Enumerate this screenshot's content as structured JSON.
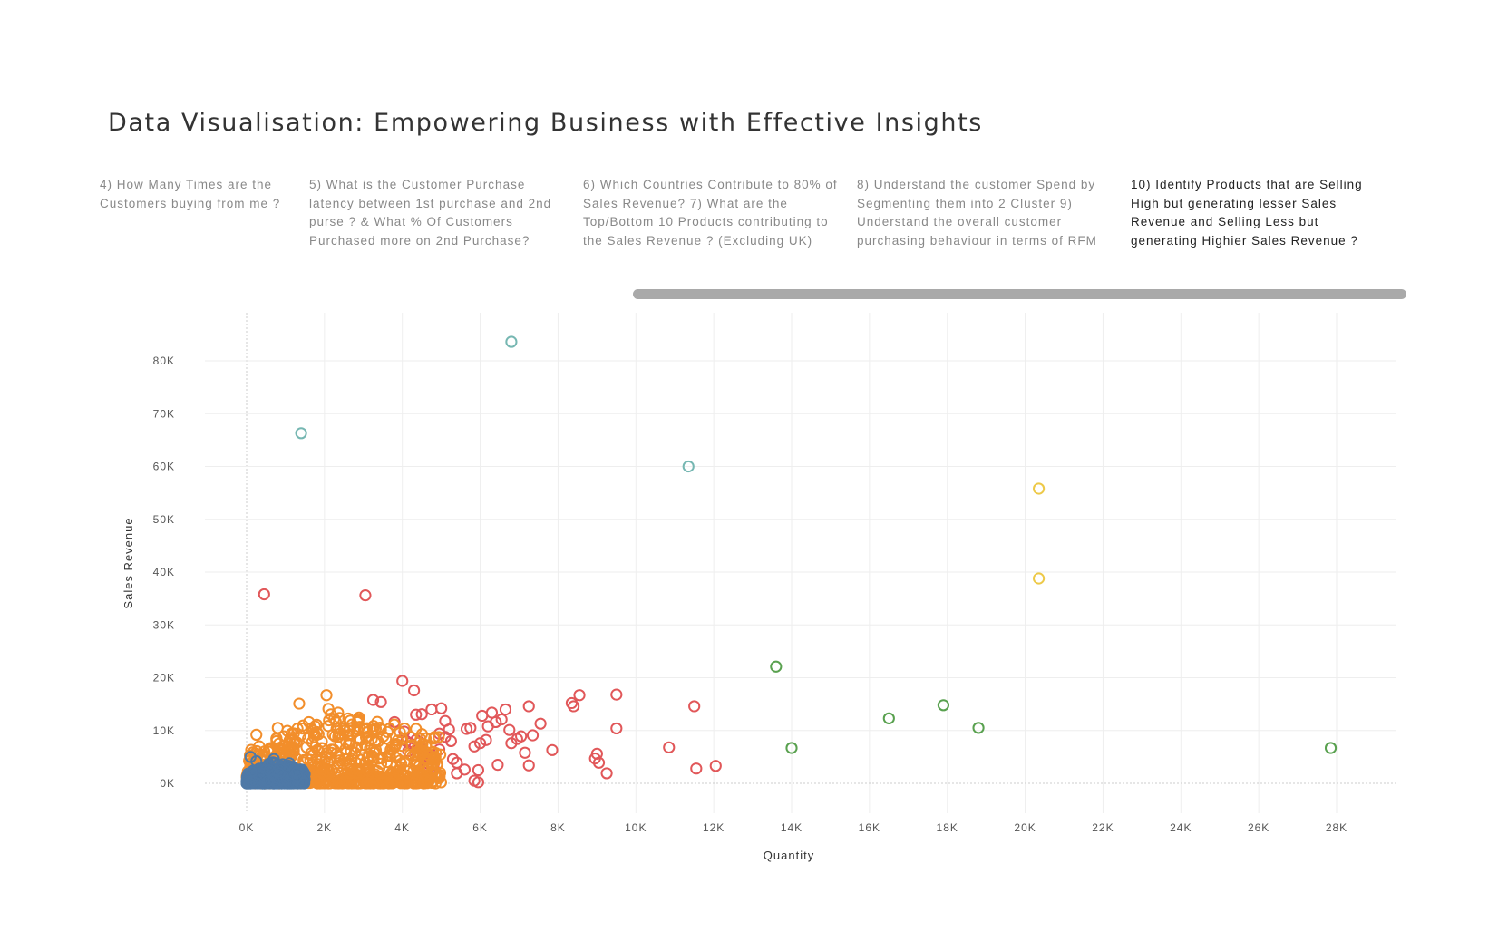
{
  "page": {
    "title": "Data Visualisation: Empowering Business with Effective Insights"
  },
  "tabs": [
    {
      "label": "4) How Many Times are the Customers buying from me ?",
      "active": false
    },
    {
      "label": "5) What is the Customer Purchase latency between 1st purchase and 2nd purse ? & What % Of Customers Purchased more on 2nd Purchase?",
      "active": false
    },
    {
      "label": "6) Which Countries Contribute to 80% of Sales Revenue?   7) What are the Top/Bottom 10 Products contributing to the Sales Revenue ? (Excluding UK)",
      "active": false
    },
    {
      "label": "8) Understand the customer Spend by Segmenting them into 2 Cluster   9) Understand the overall customer purchasing behaviour  in terms of RFM",
      "active": false
    },
    {
      "label": "10) Identify Products that are Selling High but generating lesser Sales Revenue and Selling Less but generating Highier Sales Revenue ?",
      "active": true
    }
  ],
  "chart_data": {
    "type": "scatter",
    "title": "",
    "xlabel": "Quantity",
    "ylabel": "Sales Revenue",
    "xlim": [
      0,
      29000
    ],
    "ylim": [
      -3000,
      87000
    ],
    "x_ticks": [
      0,
      2000,
      4000,
      6000,
      8000,
      10000,
      12000,
      14000,
      16000,
      18000,
      20000,
      22000,
      24000,
      26000,
      28000
    ],
    "x_tick_labels": [
      "0K",
      "2K",
      "4K",
      "6K",
      "8K",
      "10K",
      "12K",
      "14K",
      "16K",
      "18K",
      "20K",
      "22K",
      "24K",
      "26K",
      "28K"
    ],
    "y_ticks": [
      0,
      10000,
      20000,
      30000,
      40000,
      50000,
      60000,
      70000,
      80000
    ],
    "y_tick_labels": [
      "0K",
      "10K",
      "20K",
      "30K",
      "40K",
      "50K",
      "60K",
      "70K",
      "80K"
    ],
    "grid": true,
    "marker": "hollow-circle",
    "series": [
      {
        "color": "#76b7b2",
        "points": [
          [
            1400,
            66300
          ],
          [
            6800,
            83600
          ],
          [
            11350,
            60000
          ]
        ]
      },
      {
        "color": "#edc948",
        "points": [
          [
            20350,
            55800
          ],
          [
            20350,
            38800
          ]
        ]
      },
      {
        "color": "#59a14f",
        "points": [
          [
            13600,
            22100
          ],
          [
            14000,
            6700
          ],
          [
            16500,
            12300
          ],
          [
            17900,
            14800
          ],
          [
            18800,
            10500
          ],
          [
            27850,
            6700
          ]
        ]
      },
      {
        "color": "#e15759",
        "points": [
          [
            450,
            35800
          ],
          [
            3050,
            35600
          ],
          [
            4000,
            19400
          ],
          [
            4300,
            17600
          ],
          [
            3250,
            15800
          ],
          [
            3450,
            15400
          ],
          [
            4350,
            13000
          ],
          [
            4500,
            13100
          ],
          [
            4750,
            14000
          ],
          [
            5000,
            14200
          ],
          [
            5100,
            11800
          ],
          [
            5200,
            10200
          ],
          [
            4950,
            9400
          ],
          [
            5100,
            8800
          ],
          [
            5250,
            8000
          ],
          [
            4100,
            8000
          ],
          [
            4200,
            7600
          ],
          [
            4350,
            8200
          ],
          [
            4450,
            7800
          ],
          [
            4650,
            3800
          ],
          [
            4800,
            3400
          ],
          [
            4950,
            6400
          ],
          [
            5300,
            4600
          ],
          [
            5400,
            3900
          ],
          [
            5400,
            1900
          ],
          [
            5600,
            2600
          ],
          [
            5650,
            10300
          ],
          [
            5750,
            10500
          ],
          [
            5850,
            7000
          ],
          [
            6000,
            7600
          ],
          [
            6050,
            12800
          ],
          [
            6150,
            8200
          ],
          [
            6200,
            10800
          ],
          [
            6300,
            13400
          ],
          [
            6400,
            11600
          ],
          [
            6450,
            3500
          ],
          [
            6550,
            12100
          ],
          [
            6650,
            14000
          ],
          [
            6750,
            10100
          ],
          [
            6800,
            7600
          ],
          [
            6950,
            8400
          ],
          [
            7050,
            8900
          ],
          [
            7150,
            5800
          ],
          [
            7250,
            14600
          ],
          [
            7250,
            3400
          ],
          [
            7350,
            9100
          ],
          [
            7550,
            11300
          ],
          [
            7850,
            6300
          ],
          [
            8350,
            15200
          ],
          [
            8400,
            14600
          ],
          [
            8550,
            16700
          ],
          [
            8950,
            4700
          ],
          [
            9000,
            5600
          ],
          [
            9050,
            3900
          ],
          [
            9250,
            1900
          ],
          [
            9500,
            10400
          ],
          [
            9500,
            16800
          ],
          [
            5950,
            2500
          ],
          [
            5850,
            500
          ],
          [
            5950,
            200
          ],
          [
            10850,
            6800
          ],
          [
            11500,
            14600
          ],
          [
            11550,
            2800
          ],
          [
            12050,
            3300
          ],
          [
            3800,
            11600
          ],
          [
            4050,
            9800
          ],
          [
            4150,
            6100
          ],
          [
            4550,
            4400
          ],
          [
            4600,
            5200
          ]
        ]
      },
      {
        "color": "#f28e2b",
        "cluster": {
          "x": [
            0,
            5000
          ],
          "y": [
            0,
            17000
          ],
          "count": 700
        },
        "points": [
          [
            250,
            9200
          ],
          [
            800,
            10500
          ],
          [
            1350,
            15100
          ],
          [
            2050,
            16700
          ],
          [
            2100,
            14100
          ],
          [
            2250,
            12200
          ],
          [
            2350,
            13400
          ],
          [
            1600,
            11600
          ],
          [
            1800,
            11100
          ],
          [
            2900,
            10700
          ],
          [
            3300,
            10100
          ],
          [
            3450,
            10200
          ],
          [
            2600,
            9100
          ],
          [
            2350,
            8800
          ],
          [
            4200,
            5400
          ],
          [
            4600,
            1500
          ],
          [
            4950,
            1600
          ]
        ]
      },
      {
        "color": "#4e79a7",
        "cluster": {
          "x": [
            0,
            1500
          ],
          "y": [
            0,
            5000
          ],
          "count": 450
        },
        "points": [
          [
            100,
            5000
          ],
          [
            250,
            4200
          ],
          [
            700,
            4600
          ],
          [
            1100,
            3800
          ],
          [
            1300,
            2200
          ]
        ]
      }
    ]
  }
}
